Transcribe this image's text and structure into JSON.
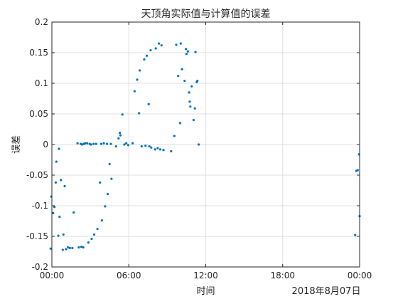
{
  "chart_data": {
    "type": "scatter",
    "title": "天顶角实际值与计算值的误差",
    "xlabel": "时间",
    "ylabel": "误差",
    "date_label": "2018年8月07日",
    "x_unit": "hours of day (2018年8月07日)",
    "xlim": [
      0,
      24
    ],
    "ylim": [
      -0.2,
      0.2
    ],
    "x_ticks": [
      0,
      6,
      12,
      18,
      24
    ],
    "x_tick_labels": [
      "00:00",
      "06:00",
      "12:00",
      "18:00",
      "00:00"
    ],
    "y_ticks": [
      -0.2,
      -0.15,
      -0.1,
      -0.05,
      0,
      0.05,
      0.1,
      0.15,
      0.2
    ],
    "y_tick_labels": [
      "-0.2",
      "-0.15",
      "-0.1",
      "-0.05",
      "0",
      "0.05",
      "0.1",
      "0.15",
      "0.2"
    ],
    "grid": true,
    "legend": "none",
    "marker_color": "#0072bd",
    "series": [
      {
        "points": [
          [
            -0.1,
            -0.17
          ],
          [
            -0.05,
            -0.085
          ],
          [
            0.1,
            -0.112
          ],
          [
            0.2,
            -0.102
          ],
          [
            0.3,
            -0.062
          ],
          [
            0.35,
            -0.028
          ],
          [
            0.5,
            -0.149
          ],
          [
            0.55,
            -0.007
          ],
          [
            0.6,
            -0.118
          ],
          [
            0.7,
            -0.058
          ],
          [
            0.85,
            -0.172
          ],
          [
            0.9,
            -0.147
          ],
          [
            1.0,
            -0.068
          ],
          [
            1.1,
            -0.171
          ],
          [
            1.25,
            -0.168
          ],
          [
            1.4,
            -0.169
          ],
          [
            1.6,
            -0.169
          ],
          [
            1.7,
            -0.111
          ],
          [
            2.0,
            0.002
          ],
          [
            2.1,
            -0.168
          ],
          [
            2.25,
            0.001
          ],
          [
            2.3,
            -0.167
          ],
          [
            2.35,
            0.0
          ],
          [
            2.45,
            -0.168
          ],
          [
            2.5,
            0.001
          ],
          [
            2.6,
            0.002
          ],
          [
            2.75,
            0.002
          ],
          [
            2.85,
            -0.16
          ],
          [
            2.95,
            0.001
          ],
          [
            3.05,
            0.0
          ],
          [
            3.1,
            -0.154
          ],
          [
            3.25,
            0.001
          ],
          [
            3.3,
            -0.147
          ],
          [
            3.45,
            0.001
          ],
          [
            3.55,
            -0.138
          ],
          [
            3.75,
            -0.062
          ],
          [
            3.85,
            0.001
          ],
          [
            3.9,
            -0.124
          ],
          [
            4.05,
            0.002
          ],
          [
            4.15,
            -0.101
          ],
          [
            4.3,
            0.001
          ],
          [
            4.35,
            -0.081
          ],
          [
            4.5,
            -0.032
          ],
          [
            4.6,
            0.001
          ],
          [
            4.65,
            -0.056
          ],
          [
            5.0,
            -0.003
          ],
          [
            5.2,
            0.01
          ],
          [
            5.3,
            0.019
          ],
          [
            5.35,
            0.015
          ],
          [
            5.5,
            0.049
          ],
          [
            5.65,
            0.0
          ],
          [
            5.8,
            0.002
          ],
          [
            5.95,
            -0.001
          ],
          [
            6.3,
            0.002
          ],
          [
            6.45,
            0.087
          ],
          [
            6.65,
            0.106
          ],
          [
            6.8,
            0.051
          ],
          [
            6.85,
            0.121
          ],
          [
            7.0,
            -0.003
          ],
          [
            7.2,
            0.139
          ],
          [
            7.3,
            -0.002
          ],
          [
            7.4,
            0.145
          ],
          [
            7.55,
            0.066
          ],
          [
            7.6,
            -0.003
          ],
          [
            7.7,
            0.154
          ],
          [
            7.75,
            -0.005
          ],
          [
            8.05,
            -0.008
          ],
          [
            8.1,
            0.157
          ],
          [
            8.25,
            -0.006
          ],
          [
            8.35,
            0.165
          ],
          [
            8.45,
            -0.008
          ],
          [
            8.55,
            0.162
          ],
          [
            8.7,
            -0.009
          ],
          [
            9.3,
            -0.011
          ],
          [
            9.55,
            0.014
          ],
          [
            9.7,
            0.163
          ],
          [
            9.85,
            0.112
          ],
          [
            10.0,
            0.035
          ],
          [
            10.05,
            0.165
          ],
          [
            10.15,
            0.123
          ],
          [
            10.35,
            0.104
          ],
          [
            10.45,
            0.156
          ],
          [
            10.5,
            0.148
          ],
          [
            10.6,
            0.152
          ],
          [
            10.7,
            0.085
          ],
          [
            10.75,
            0.07
          ],
          [
            10.8,
            0.062
          ],
          [
            10.9,
            0.095
          ],
          [
            11.05,
            0.04
          ],
          [
            11.15,
            0.059
          ],
          [
            11.2,
            0.151
          ],
          [
            11.3,
            0.102
          ],
          [
            11.35,
            0.104
          ],
          [
            11.45,
            0.0
          ],
          [
            23.65,
            -0.148
          ],
          [
            23.75,
            -0.043
          ],
          [
            23.85,
            -0.042
          ],
          [
            23.95,
            -0.016
          ],
          [
            24.0,
            -0.117
          ]
        ]
      }
    ]
  }
}
